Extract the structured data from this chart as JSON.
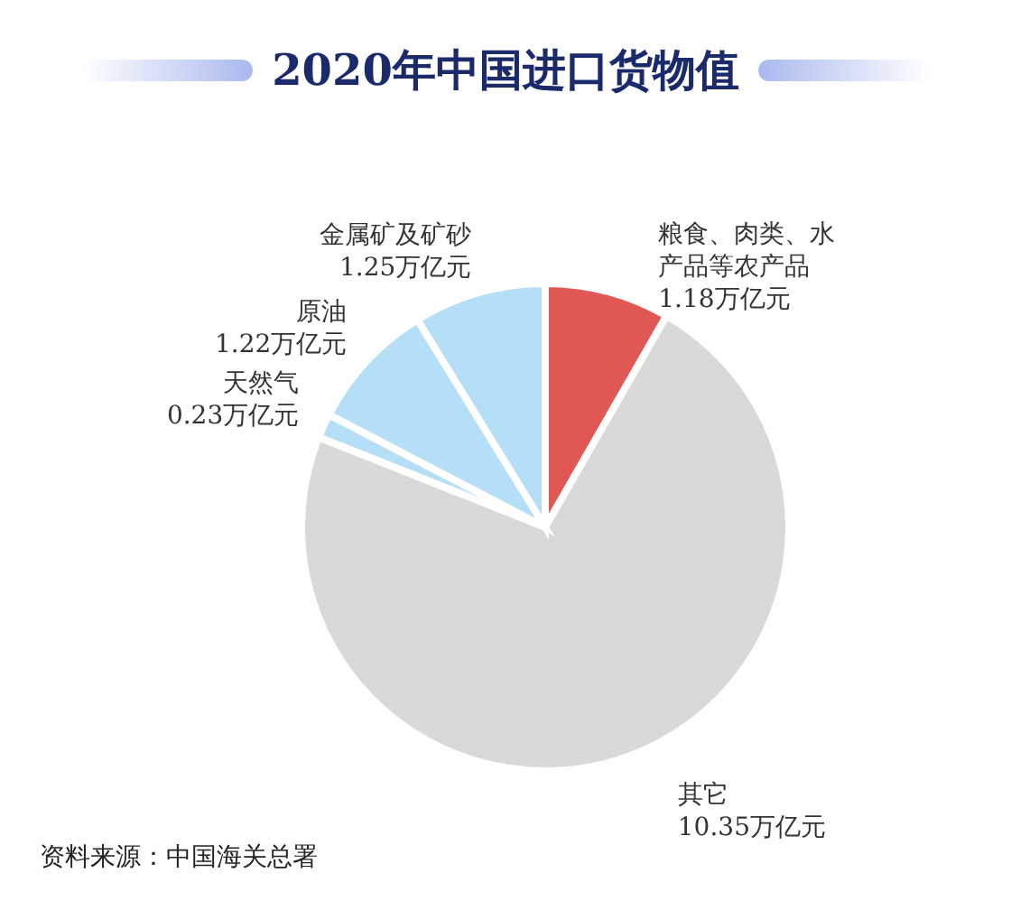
{
  "chart_data": {
    "type": "pie",
    "title": "2020年中国进口货物值",
    "categories": [
      "粮食、肉类、水产品等农产品",
      "其它",
      "天然气",
      "原油",
      "金属矿及矿砂"
    ],
    "values": [
      1.18,
      10.35,
      0.23,
      1.22,
      1.25
    ],
    "value_labels": [
      "1.18万亿元",
      "10.35万亿元",
      "0.23万亿元",
      "1.22万亿元",
      "1.25万亿元"
    ],
    "colors": [
      "#e05753",
      "#d9d9d9",
      "#b5def7",
      "#b5def7",
      "#b5def7"
    ],
    "annotations": [
      "资料来源：中国海关总署"
    ]
  }
}
